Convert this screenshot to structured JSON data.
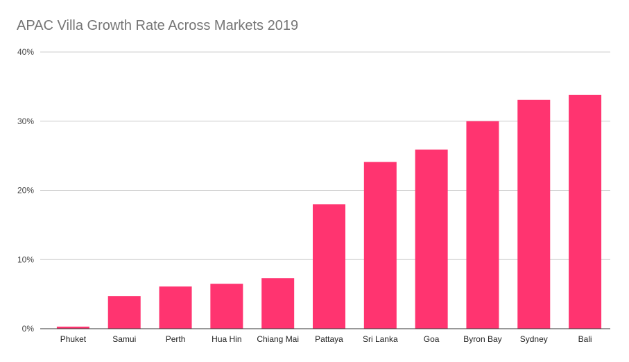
{
  "chart_data": {
    "type": "bar",
    "title": "APAC Villa Growth Rate Across Markets 2019",
    "xlabel": "",
    "ylabel": "",
    "categories": [
      "Phuket",
      "Samui",
      "Perth",
      "Hua Hin",
      "Chiang Mai",
      "Pattaya",
      "Sri Lanka",
      "Goa",
      "Byron Bay",
      "Sydney",
      "Bali"
    ],
    "values": [
      0.3,
      4.7,
      6.1,
      6.5,
      7.3,
      18.0,
      24.1,
      25.9,
      30.0,
      33.1,
      33.8
    ],
    "ylim": [
      0,
      40
    ],
    "yticks": [
      {
        "value": 0,
        "label": "0%"
      },
      {
        "value": 10,
        "label": "10%"
      },
      {
        "value": 20,
        "label": "20%"
      },
      {
        "value": 30,
        "label": "30%"
      },
      {
        "value": 40,
        "label": "40%"
      }
    ],
    "grid": true,
    "legend": "none",
    "colors": {
      "bar": "#ff3470",
      "grid": "#cccccc",
      "axis": "#333333",
      "title": "#757575"
    }
  }
}
